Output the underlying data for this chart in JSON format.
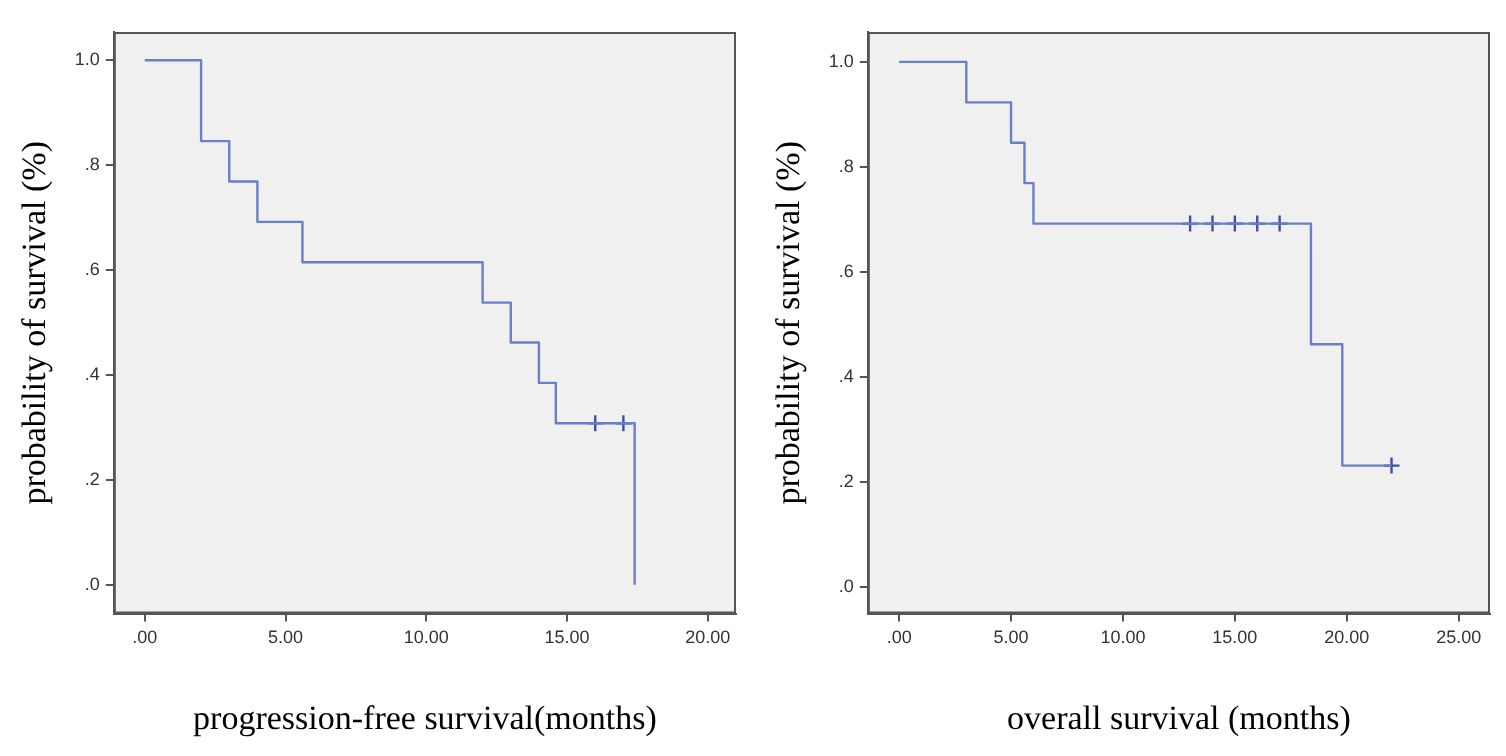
{
  "chart_data": [
    {
      "type": "step",
      "xlabel": "progression-free survival(months)",
      "ylabel": "probability of survival (%)",
      "xlim": [
        -1.1,
        21
      ],
      "ylim": [
        -0.055,
        1.054
      ],
      "xticks": [
        {
          "value": 0,
          "label": ".00"
        },
        {
          "value": 5,
          "label": "5.00"
        },
        {
          "value": 10,
          "label": "10.00"
        },
        {
          "value": 15,
          "label": "15.00"
        },
        {
          "value": 20,
          "label": "20.00"
        }
      ],
      "yticks": [
        {
          "value": 0,
          "label": ".0"
        },
        {
          "value": 0.2,
          "label": ".2"
        },
        {
          "value": 0.4,
          "label": ".4"
        },
        {
          "value": 0.6,
          "label": ".6"
        },
        {
          "value": 0.8,
          "label": ".8"
        },
        {
          "value": 1,
          "label": "1.0"
        }
      ],
      "grid": false,
      "legend": false,
      "series": [
        {
          "type": "step",
          "color": "#6b7fc9",
          "x": [
            0,
            2,
            3,
            4,
            5.6,
            12,
            13,
            14,
            14.6,
            17.4
          ],
          "values": [
            1,
            0.846,
            0.769,
            0.692,
            0.615,
            0.538,
            0.462,
            0.385,
            0.308,
            0
          ]
        },
        {
          "type": "scatter",
          "marker": "cross",
          "color": "#3f4f9c",
          "x": [
            16,
            17
          ],
          "values": [
            0.308,
            0.308
          ]
        }
      ]
    },
    {
      "type": "step",
      "xlabel": "overall survival (months)",
      "ylabel": "probability of survival (%)",
      "xlim": [
        -1.4,
        26.4
      ],
      "ylim": [
        -0.051,
        1.057
      ],
      "xticks": [
        {
          "value": 0,
          "label": ".00"
        },
        {
          "value": 5,
          "label": "5.00"
        },
        {
          "value": 10,
          "label": "10.00"
        },
        {
          "value": 15,
          "label": "15.00"
        },
        {
          "value": 20,
          "label": "20.00"
        },
        {
          "value": 25,
          "label": "25.00"
        }
      ],
      "yticks": [
        {
          "value": 0,
          "label": ".0"
        },
        {
          "value": 0.2,
          "label": ".2"
        },
        {
          "value": 0.4,
          "label": ".4"
        },
        {
          "value": 0.6,
          "label": ".6"
        },
        {
          "value": 0.8,
          "label": ".8"
        },
        {
          "value": 1,
          "label": "1.0"
        }
      ],
      "grid": false,
      "legend": false,
      "series": [
        {
          "type": "step",
          "color": "#6b7fc9",
          "x": [
            0,
            3,
            5,
            5.6,
            6,
            18.4,
            19.8,
            22
          ],
          "values": [
            1,
            0.923,
            0.846,
            0.769,
            0.692,
            0.462,
            0.231,
            0.231
          ]
        },
        {
          "type": "scatter",
          "marker": "cross",
          "color": "#3f4f9c",
          "x": [
            13,
            14,
            15,
            16,
            17,
            22
          ],
          "values": [
            0.692,
            0.692,
            0.692,
            0.692,
            0.692,
            0.231
          ]
        }
      ]
    }
  ]
}
